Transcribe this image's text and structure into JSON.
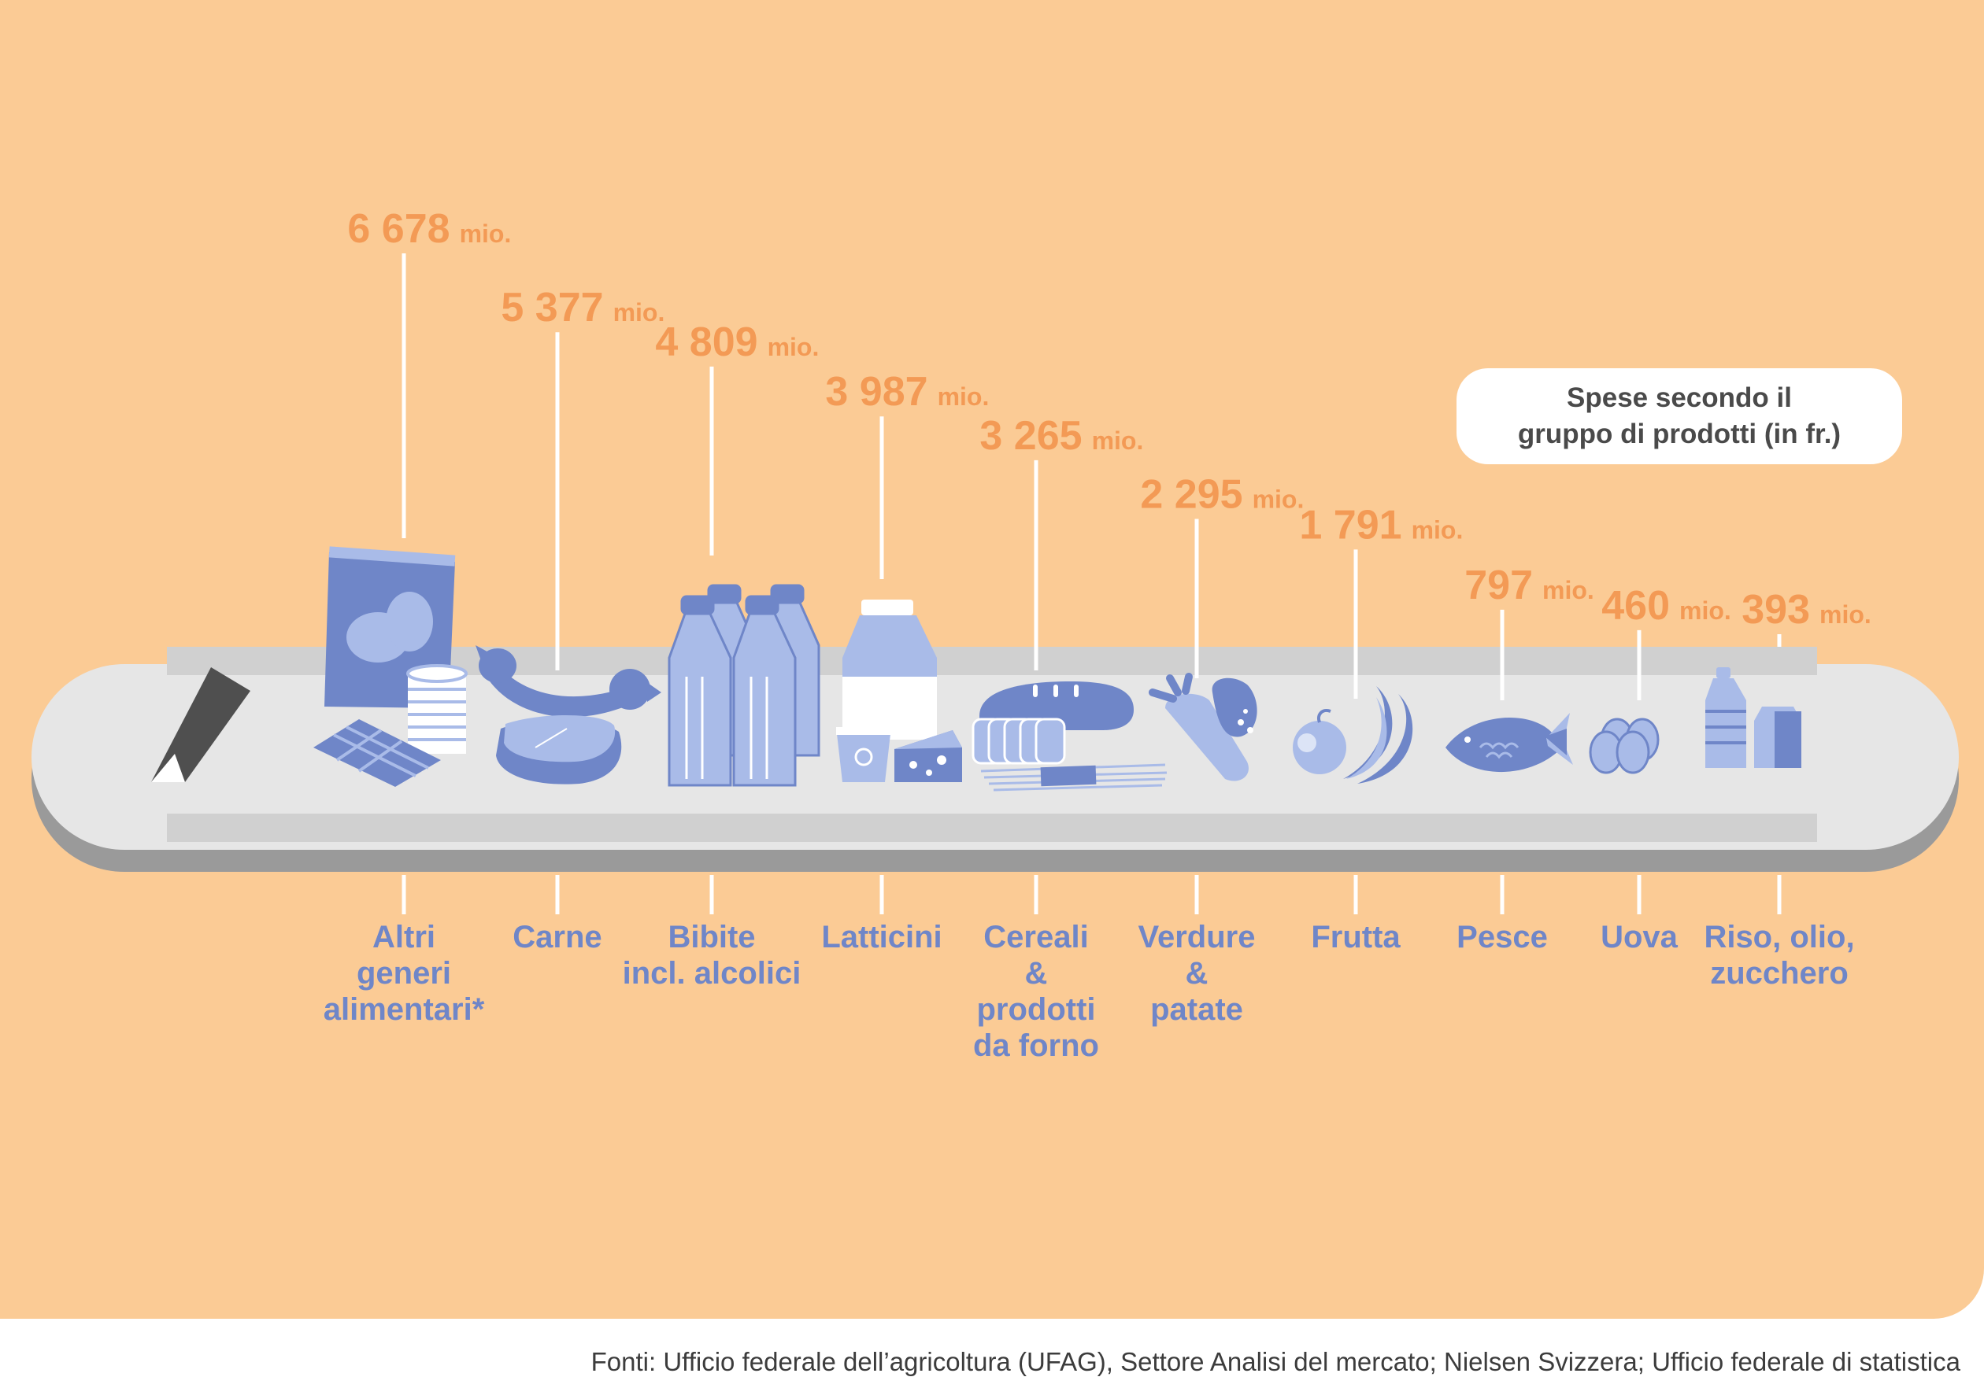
{
  "chart_data": {
    "type": "bar",
    "title": "Spese secondo il\ngruppo di prodotti (in fr.)",
    "unit": "mio.",
    "categories": [
      "Altri generi alimentari*",
      "Carne",
      "Bibite incl. alcolici",
      "Latticini",
      "Cereali & prodotti da forno",
      "Verdure & patate",
      "Frutta",
      "Pesce",
      "Uova",
      "Riso, olio, zucchero"
    ],
    "category_lines": [
      [
        "Altri",
        "generi",
        "alimentari*"
      ],
      [
        "Carne"
      ],
      [
        "Bibite",
        "incl. alcolici"
      ],
      [
        "Latticini"
      ],
      [
        "Cereali",
        "&",
        "prodotti",
        "da forno"
      ],
      [
        "Verdure",
        "&",
        "patate"
      ],
      [
        "Frutta"
      ],
      [
        "Pesce"
      ],
      [
        "Uova"
      ],
      [
        "Riso, olio,",
        "zucchero"
      ]
    ],
    "values": [
      6678,
      5377,
      4809,
      3987,
      3265,
      2295,
      1791,
      797,
      460,
      393
    ],
    "value_labels": [
      "6 678",
      "5 377",
      "4 809",
      "3 987",
      "3 265",
      "2 295",
      "1 791",
      "797",
      "460",
      "393"
    ],
    "icons": [
      "snack-bag-chocolate-can-icon",
      "sausage-steak-icon",
      "bottles-icon",
      "milk-yogurt-cheese-icon",
      "bread-pasta-icon",
      "carrot-potato-icon",
      "apple-banana-icon",
      "fish-icon",
      "eggs-icon",
      "oil-bottle-sugar-icon"
    ],
    "colors": {
      "background": "#fbcb95",
      "value": "#f39a55",
      "label": "#6f86c8",
      "icon_dark": "#6f86c8",
      "icon_light": "#a9bbe8",
      "belt": "#e6e6e6",
      "belt_shadow": "#9a9a9a",
      "belt_rail": "#d0d0d0",
      "stem": "#ffffff"
    }
  },
  "source": "Fonti: Ufficio federale dell’agricoltura (UFAG), Settore Analisi del mercato; Nielsen Svizzera; Ufficio federale di statistica"
}
